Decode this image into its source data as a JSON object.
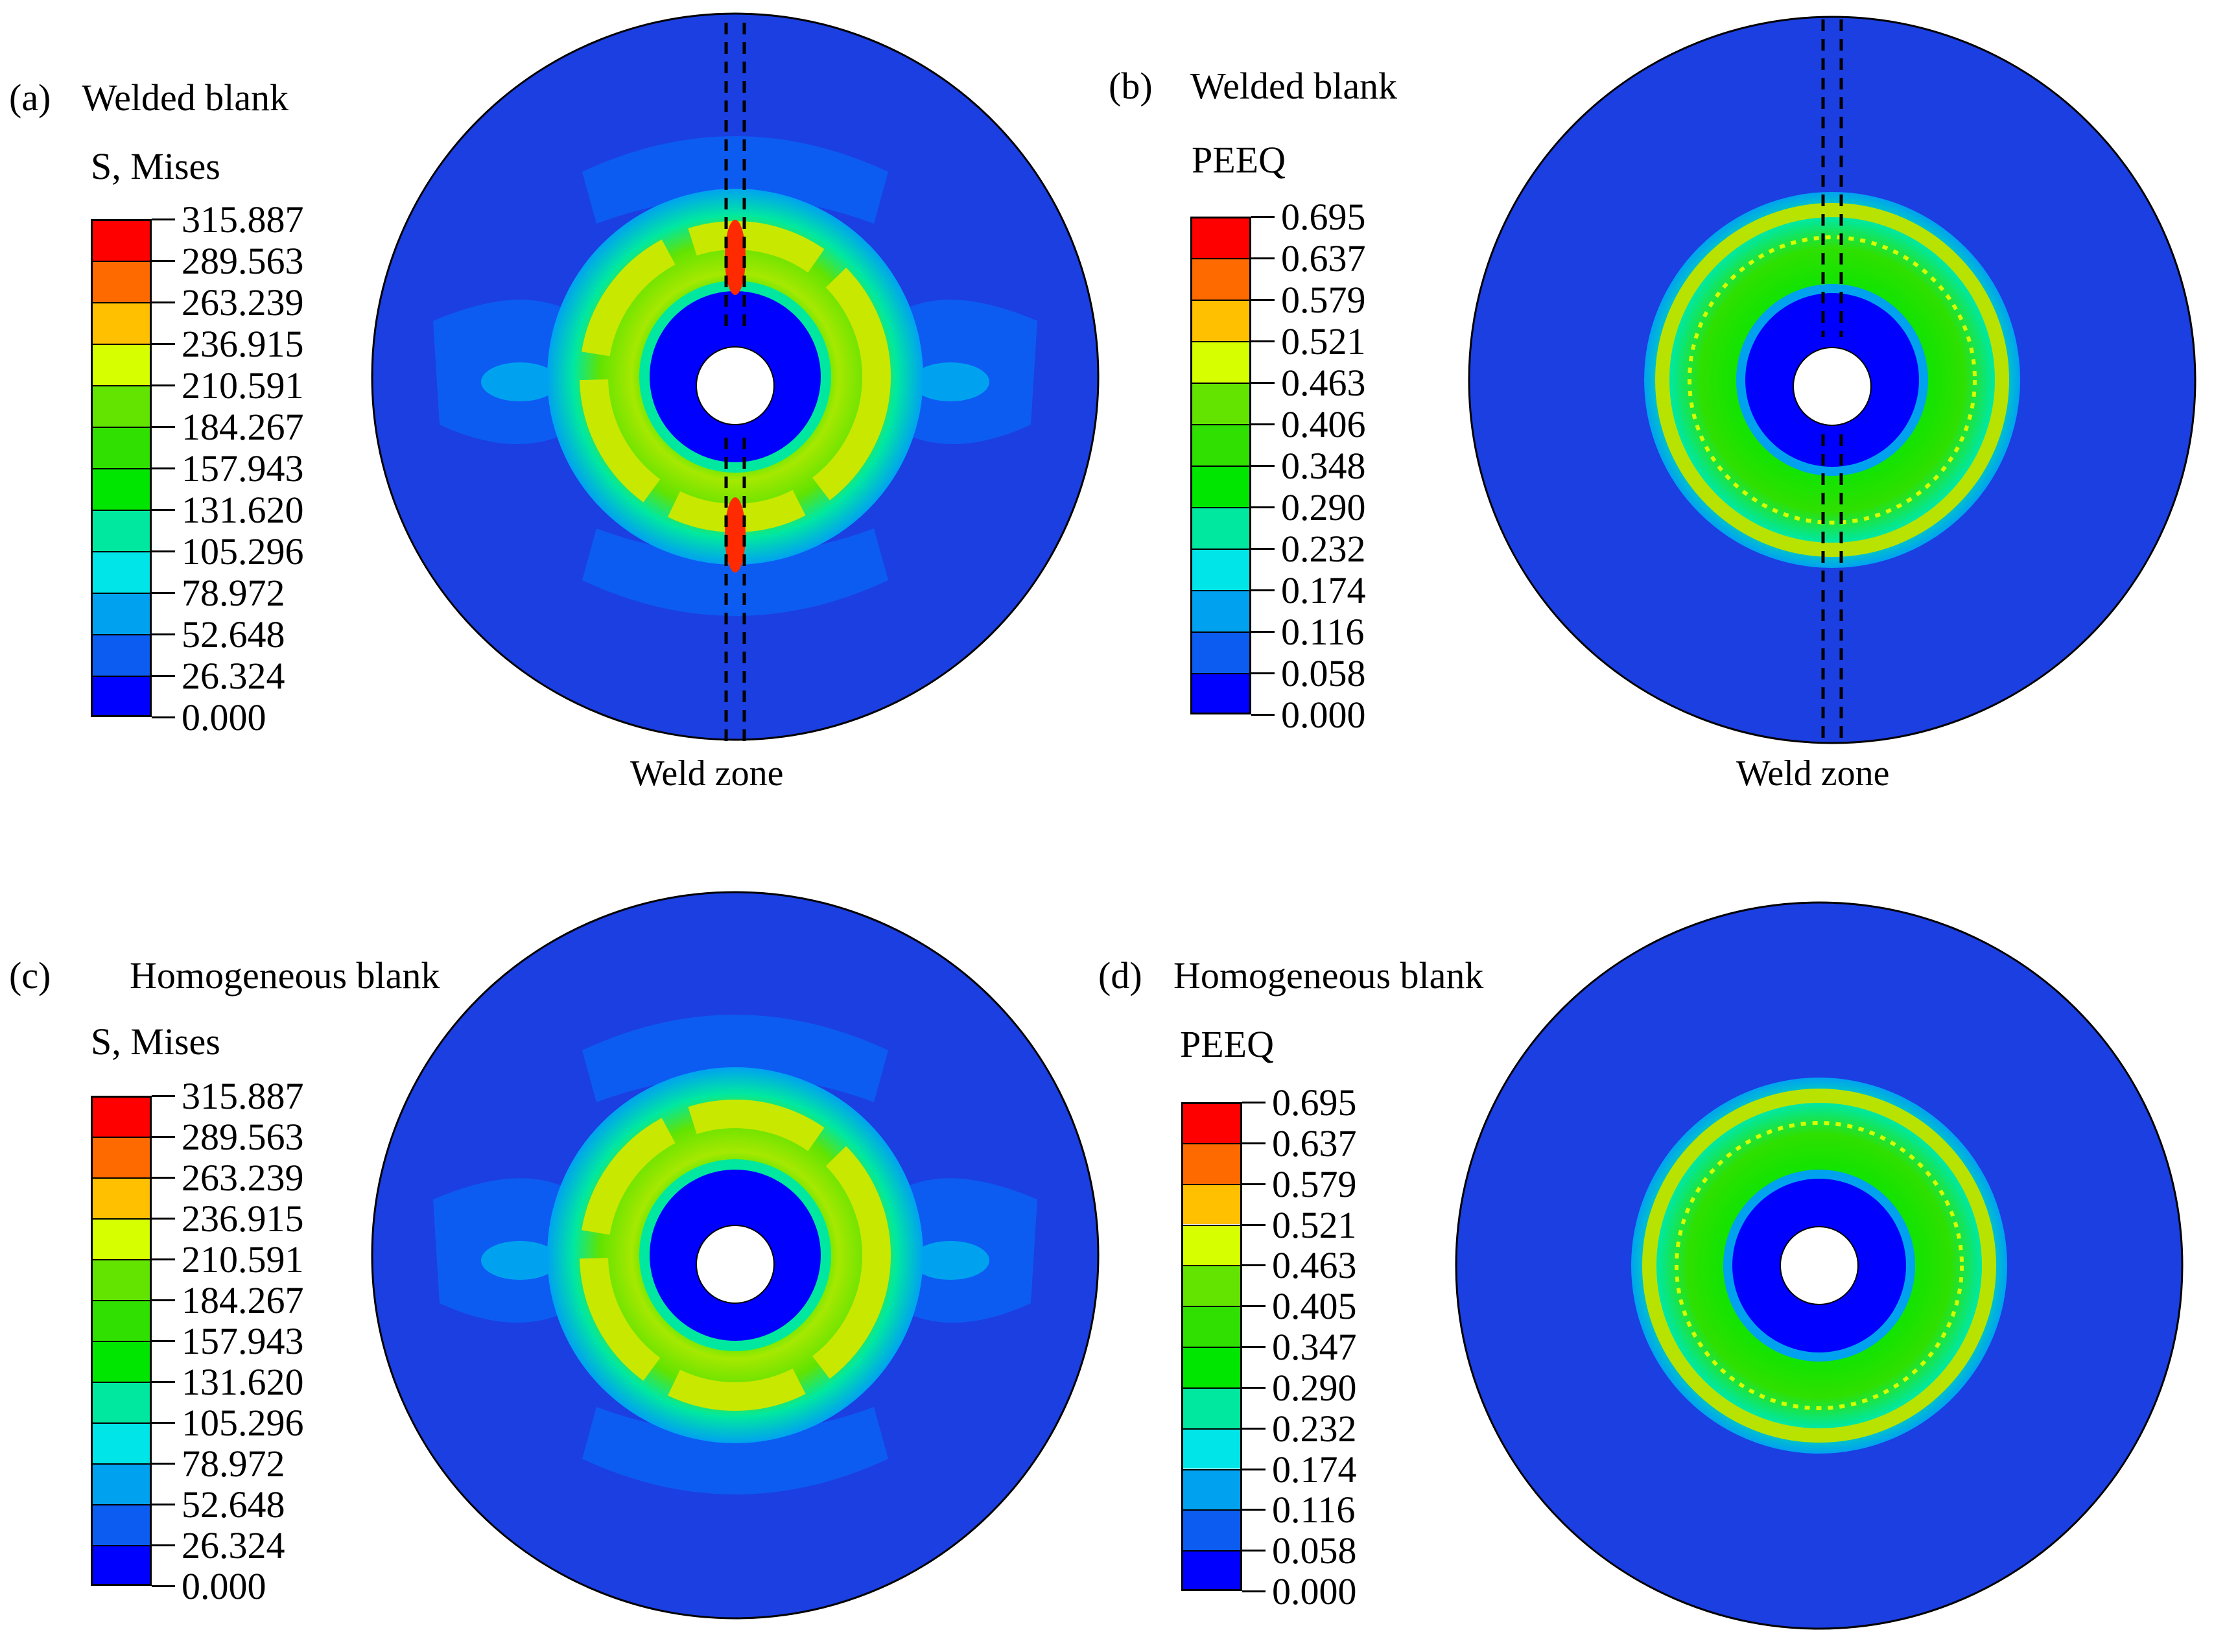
{
  "colormap": [
    "#0000ff",
    "#0d5cf2",
    "#00a2f0",
    "#00e6e8",
    "#00e8a0",
    "#00e600",
    "#2fe000",
    "#62e300",
    "#d6ff00",
    "#ffc000",
    "#ff6a00",
    "#ff0000"
  ],
  "colors": {
    "blank_background": "#1b3fe0",
    "outline": "#000000",
    "hole": "#ffffff"
  },
  "panels": [
    {
      "id": "a",
      "label": "(a)",
      "title": "Welded blank",
      "variable": "S, Mises",
      "legend_values": [
        "315.887",
        "289.563",
        "263.239",
        "236.915",
        "210.591",
        "184.267",
        "157.943",
        "131.620",
        "105.296",
        "78.972",
        "52.648",
        "26.324",
        "0.000"
      ],
      "weld_zone_label": "Weld zone",
      "has_weld_zone": true
    },
    {
      "id": "b",
      "label": "(b)",
      "title": "Welded blank",
      "variable": "PEEQ",
      "legend_values": [
        "0.695",
        "0.637",
        "0.579",
        "0.521",
        "0.463",
        "0.406",
        "0.348",
        "0.290",
        "0.232",
        "0.174",
        "0.116",
        "0.058",
        "0.000"
      ],
      "weld_zone_label": "Weld zone",
      "has_weld_zone": true
    },
    {
      "id": "c",
      "label": "(c)",
      "title": "Homogeneous blank",
      "variable": "S, Mises",
      "legend_values": [
        "315.887",
        "289.563",
        "263.239",
        "236.915",
        "210.591",
        "184.267",
        "157.943",
        "131.620",
        "105.296",
        "78.972",
        "52.648",
        "26.324",
        "0.000"
      ],
      "has_weld_zone": false
    },
    {
      "id": "d",
      "label": "(d)",
      "title": "Homogeneous blank",
      "variable": "PEEQ",
      "legend_values": [
        "0.695",
        "0.637",
        "0.579",
        "0.521",
        "0.463",
        "0.405",
        "0.347",
        "0.290",
        "0.232",
        "0.174",
        "0.116",
        "0.058",
        "0.000"
      ],
      "has_weld_zone": false
    }
  ]
}
